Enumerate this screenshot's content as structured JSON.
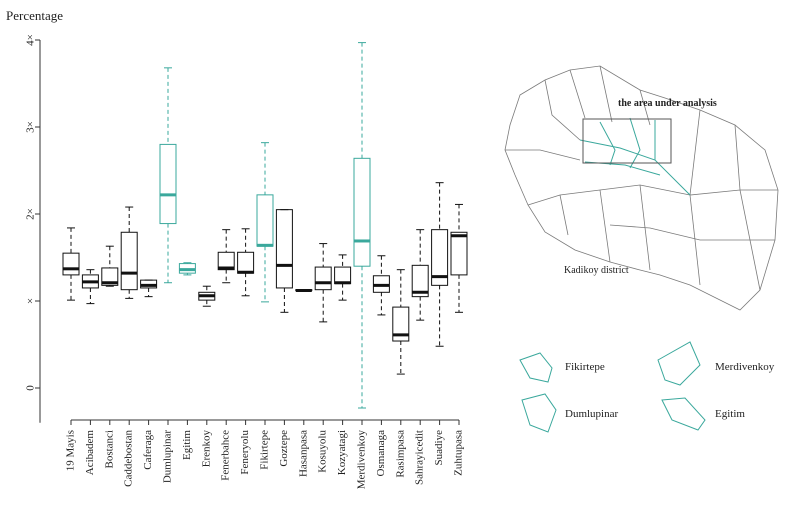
{
  "chart_data": {
    "type": "box",
    "y_label": "Percentage",
    "categories": [
      "19 Mayis",
      "Acibadem",
      "Bostanci",
      "Caddebostan",
      "Caferaga",
      "Dumlupinar",
      "Egitim",
      "Erenkoy",
      "Fenerbahce",
      "Feneryolu",
      "Fikirtepe",
      "Goztepe",
      "Hasanpasa",
      "Kosuyolu",
      "Kozyatagi",
      "Merdivenkoy",
      "Osmanaga",
      "Rasimpasa",
      "Sahrayicedit",
      "Suadiye",
      "Zuhtupasa"
    ],
    "colors": [
      "#111111",
      "#111111",
      "#111111",
      "#111111",
      "#111111",
      "#3aa89c",
      "#3aa89c",
      "#111111",
      "#111111",
      "#111111",
      "#3aa89c",
      "#111111",
      "#111111",
      "#111111",
      "#111111",
      "#3aa89c",
      "#111111",
      "#111111",
      "#111111",
      "#111111",
      "#111111"
    ],
    "boxes": [
      {
        "min": 1.01,
        "q1": 1.3,
        "median": 1.37,
        "q3": 1.55,
        "max": 1.84
      },
      {
        "min": 0.97,
        "q1": 1.15,
        "median": 1.22,
        "q3": 1.3,
        "max": 1.36
      },
      {
        "min": 1.17,
        "q1": 1.18,
        "median": 1.21,
        "q3": 1.38,
        "max": 1.63
      },
      {
        "min": 1.03,
        "q1": 1.13,
        "median": 1.32,
        "q3": 1.79,
        "max": 2.08
      },
      {
        "min": 1.05,
        "q1": 1.15,
        "median": 1.18,
        "q3": 1.24,
        "max": 1.24
      },
      {
        "min": 1.21,
        "q1": 1.89,
        "median": 2.22,
        "q3": 2.8,
        "max": 3.68
      },
      {
        "min": 1.3,
        "q1": 1.32,
        "median": 1.36,
        "q3": 1.43,
        "max": 1.44
      },
      {
        "min": 0.94,
        "q1": 1.01,
        "median": 1.06,
        "q3": 1.1,
        "max": 1.17
      },
      {
        "min": 1.21,
        "q1": 1.36,
        "median": 1.38,
        "q3": 1.56,
        "max": 1.82
      },
      {
        "min": 1.06,
        "q1": 1.32,
        "median": 1.33,
        "q3": 1.56,
        "max": 1.83
      },
      {
        "min": 0.99,
        "q1": 1.63,
        "median": 1.64,
        "q3": 2.22,
        "max": 2.82
      },
      {
        "min": 0.87,
        "q1": 1.15,
        "median": 1.41,
        "q3": 2.05,
        "max": 2.05
      },
      {
        "min": 1.12,
        "q1": 1.12,
        "median": 1.12,
        "q3": 1.13,
        "max": 1.13
      },
      {
        "min": 0.76,
        "q1": 1.13,
        "median": 1.21,
        "q3": 1.39,
        "max": 1.66
      },
      {
        "min": 1.01,
        "q1": 1.2,
        "median": 1.21,
        "q3": 1.39,
        "max": 1.53
      },
      {
        "min": -0.23,
        "q1": 1.4,
        "median": 1.69,
        "q3": 2.64,
        "max": 3.97
      },
      {
        "min": 0.84,
        "q1": 1.1,
        "median": 1.18,
        "q3": 1.29,
        "max": 1.52
      },
      {
        "min": 0.16,
        "q1": 0.54,
        "median": 0.61,
        "q3": 0.93,
        "max": 1.36
      },
      {
        "min": 0.78,
        "q1": 1.05,
        "median": 1.1,
        "q3": 1.41,
        "max": 1.82
      },
      {
        "min": 0.48,
        "q1": 1.18,
        "median": 1.28,
        "q3": 1.82,
        "max": 2.36
      },
      {
        "min": 0.87,
        "q1": 1.3,
        "median": 1.75,
        "q3": 1.79,
        "max": 2.11
      }
    ],
    "ylim": [
      -0.4,
      4.0
    ],
    "yticks": [
      0,
      {
        "value": 1,
        "label": "×"
      },
      {
        "value": 2,
        "label": "2×"
      },
      {
        "value": 3,
        "label": "3×"
      },
      {
        "value": 4,
        "label": "4×"
      }
    ],
    "map": {
      "area_label": "the area under analysis",
      "district_label": "Kadikoy district",
      "legend": [
        "Fikirtepe",
        "Merdivenkoy",
        "Dumlupinar",
        "Egitim"
      ]
    }
  }
}
